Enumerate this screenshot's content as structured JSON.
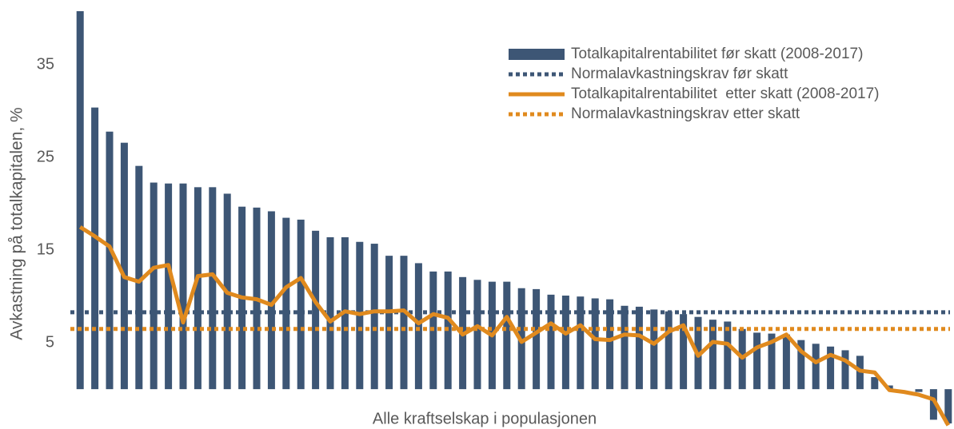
{
  "chart_data": {
    "type": "bar",
    "y_label": "Avkastning på totalkapitalen, %",
    "x_label": "Alle kraftselskap i populasjonen",
    "categories": [
      null,
      null,
      null,
      null,
      null,
      null,
      null,
      null,
      null,
      null,
      null,
      null,
      null,
      null,
      null,
      null,
      null,
      null,
      null,
      null,
      null,
      null,
      null,
      null,
      null,
      null,
      null,
      null,
      null,
      null,
      null,
      null,
      null,
      null,
      null,
      null,
      null,
      null,
      null,
      null,
      null,
      null,
      null,
      null,
      null,
      null,
      null,
      null,
      null,
      null,
      null,
      null,
      null,
      null,
      null,
      null,
      null,
      null,
      null,
      null
    ],
    "series": [
      {
        "name": "Totalkapitalrentabilitet før skatt (2008-2017)",
        "kind": "bar",
        "color": "#3d5675",
        "values": [
          40.8,
          30.4,
          27.8,
          26.6,
          24.1,
          22.3,
          22.2,
          22.2,
          21.8,
          21.8,
          21.1,
          19.7,
          19.6,
          19.2,
          18.5,
          18.3,
          17.1,
          16.4,
          16.4,
          15.9,
          15.7,
          14.4,
          14.4,
          13.6,
          12.7,
          12.7,
          12.1,
          11.8,
          11.6,
          11.6,
          10.9,
          10.8,
          10.2,
          10.1,
          10.0,
          9.8,
          9.7,
          9.0,
          8.9,
          8.6,
          8.4,
          8.1,
          7.8,
          7.5,
          7.3,
          6.5,
          6.1,
          6.0,
          5.9,
          5.3,
          4.9,
          4.6,
          4.2,
          3.6,
          1.3,
          0.4,
          0.0,
          -0.3,
          -3.3,
          -3.7
        ]
      },
      {
        "name": "Normalavkastningskrav før skatt",
        "kind": "hline",
        "color": "#3d5675",
        "value": 8.3
      },
      {
        "name": "Totalkapitalrentabilitet  etter skatt (2008-2017)",
        "kind": "line",
        "color": "#e08a1e",
        "values": [
          17.5,
          16.5,
          15.4,
          12.1,
          11.6,
          13.1,
          13.4,
          7.2,
          12.2,
          12.4,
          10.4,
          9.9,
          9.7,
          9.1,
          11.0,
          12.0,
          9.4,
          7.3,
          8.4,
          8.1,
          8.4,
          8.4,
          8.5,
          7.1,
          8.1,
          7.7,
          5.9,
          6.8,
          5.8,
          7.8,
          5.1,
          6.1,
          7.1,
          6.0,
          6.9,
          5.4,
          5.3,
          5.9,
          5.8,
          4.9,
          6.2,
          6.9,
          3.6,
          5.1,
          4.9,
          3.4,
          4.5,
          5.1,
          5.9,
          4.1,
          2.9,
          3.7,
          3.1,
          2.0,
          1.8,
          -0.1,
          -0.3,
          -0.6,
          -1.1,
          -3.9
        ]
      },
      {
        "name": "Normalavkastningskrav etter skatt",
        "kind": "hline",
        "color": "#e08a1e",
        "value": 6.5
      }
    ],
    "ylim": [
      -4.3,
      40.8
    ],
    "yticks": [
      5,
      15,
      25,
      35
    ],
    "grid": false,
    "legend": "upper right"
  }
}
